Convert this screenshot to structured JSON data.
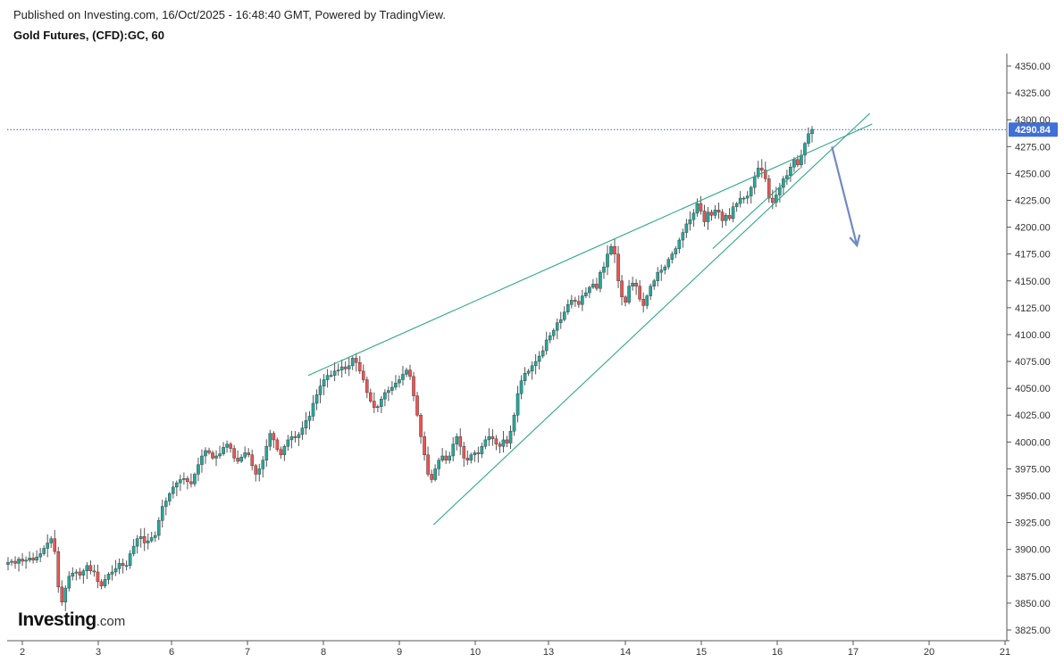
{
  "header": {
    "published": "Published on Investing.com, 16/Oct/2025 - 16:48:40 GMT, Powered by TradingView.",
    "instrument": "Gold Futures, (CFD):GC, 60"
  },
  "logo": {
    "name": "Investing",
    "suffix": ".com"
  },
  "colors": {
    "up": "#26a69a",
    "down": "#ef5350",
    "wick": "#555555",
    "trendline": "#2ea88a",
    "arrow": "#7189c4",
    "price_line": "#3f5eb5",
    "price_tag_bg": "#3f6fd8",
    "axis_text": "#333333"
  },
  "chart_data": {
    "type": "candlestick",
    "title": "Gold Futures, (CFD):GC, 60",
    "ylim": [
      3815,
      4365
    ],
    "y_ticks": [
      3825,
      3850,
      3875,
      3900,
      3925,
      3950,
      3975,
      4000,
      4025,
      4050,
      4075,
      4100,
      4125,
      4150,
      4175,
      4200,
      4225,
      4250,
      4275,
      4300,
      4325,
      4350
    ],
    "y_tick_labels": [
      "3825.00",
      "3850.00",
      "3875.00",
      "3900.00",
      "3925.00",
      "3950.00",
      "3975.00",
      "4000.00",
      "4025.00",
      "4050.00",
      "4075.00",
      "4100.00",
      "4125.00",
      "4150.00",
      "4175.00",
      "4200.00",
      "4225.00",
      "4250.00",
      "4275.00",
      "4300.00",
      "4325.00",
      "4350.00"
    ],
    "x_ticks": [
      {
        "label": "2",
        "day": 0
      },
      {
        "label": "3",
        "day": 1
      },
      {
        "label": "6",
        "day": 2
      },
      {
        "label": "7",
        "day": 3
      },
      {
        "label": "8",
        "day": 4
      },
      {
        "label": "9",
        "day": 5
      },
      {
        "label": "10",
        "day": 6
      },
      {
        "label": "13",
        "day": 7
      },
      {
        "label": "14",
        "day": 8
      },
      {
        "label": "15",
        "day": 9
      },
      {
        "label": "16",
        "day": 10
      },
      {
        "label": "17",
        "day": 11
      },
      {
        "label": "20",
        "day": 12
      },
      {
        "label": "21",
        "day": 13
      }
    ],
    "last_price": 4290.84,
    "last_price_label": "4290.84",
    "closes": [
      3888,
      3889,
      3887,
      3891,
      3889,
      3890,
      3892,
      3890,
      3893,
      3896,
      3901,
      3906,
      3910,
      3898,
      3865,
      3851,
      3864,
      3875,
      3878,
      3879,
      3876,
      3880,
      3885,
      3880,
      3879,
      3870,
      3866,
      3872,
      3877,
      3879,
      3882,
      3887,
      3885,
      3885,
      3896,
      3903,
      3910,
      3912,
      3906,
      3908,
      3911,
      3913,
      3927,
      3940,
      3945,
      3952,
      3958,
      3962,
      3965,
      3966,
      3963,
      3961,
      3970,
      3979,
      3987,
      3992,
      3990,
      3985,
      3987,
      3989,
      3995,
      3998,
      3994,
      3985,
      3982,
      3986,
      3990,
      3988,
      3978,
      3970,
      3975,
      3983,
      3996,
      4008,
      4002,
      3993,
      3988,
      3996,
      4002,
      4005,
      4004,
      4007,
      4013,
      4020,
      4024,
      4036,
      4044,
      4052,
      4058,
      4062,
      4062,
      4066,
      4067,
      4070,
      4068,
      4071,
      4078,
      4074,
      4066,
      4058,
      4046,
      4038,
      4032,
      4033,
      4040,
      4046,
      4048,
      4051,
      4055,
      4058,
      4063,
      4067,
      4061,
      4043,
      4025,
      4005,
      3988,
      3970,
      3965,
      3975,
      3983,
      3987,
      3983,
      3987,
      3998,
      4005,
      3996,
      3985,
      3983,
      3988,
      3990,
      3989,
      3996,
      4002,
      4005,
      4003,
      3998,
      3996,
      4002,
      3999,
      4010,
      4025,
      4045,
      4057,
      4064,
      4066,
      4071,
      4075,
      4080,
      4085,
      4095,
      4099,
      4104,
      4111,
      4114,
      4121,
      4128,
      4132,
      4131,
      4128,
      4136,
      4139,
      4144,
      4147,
      4143,
      4158,
      4163,
      4175,
      4182,
      4175,
      4150,
      4135,
      4130,
      4145,
      4148,
      4145,
      4133,
      4127,
      4136,
      4145,
      4150,
      4158,
      4160,
      4163,
      4170,
      4175,
      4180,
      4188,
      4195,
      4203,
      4207,
      4213,
      4222,
      4215,
      4205,
      4214,
      4211,
      4216,
      4214,
      4206,
      4211,
      4208,
      4219,
      4222,
      4227,
      4227,
      4229,
      4237,
      4247,
      4255,
      4253,
      4245,
      4227,
      4223,
      4230,
      4237,
      4245,
      4248,
      4256,
      4263,
      4258,
      4267,
      4278,
      4287,
      4291
    ]
  }
}
